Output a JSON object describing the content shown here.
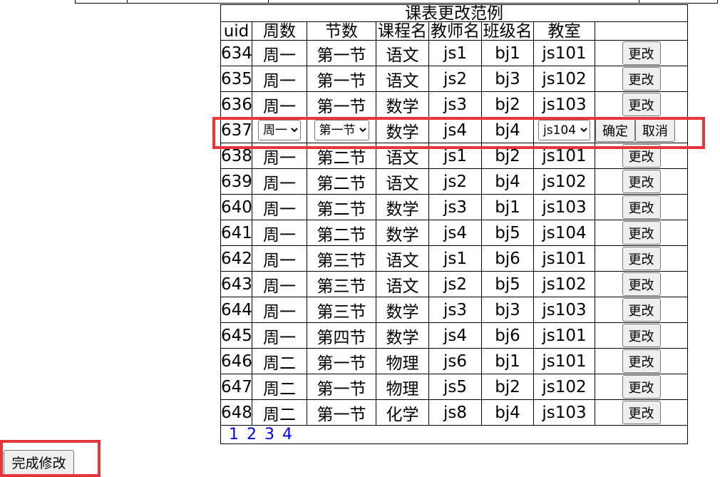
{
  "table": {
    "title": "课表更改范例",
    "headers": [
      "uid",
      "周数",
      "节数",
      "课程名",
      "教师名",
      "班级名",
      "教室",
      ""
    ],
    "rows": [
      {
        "cells": [
          "634",
          "周一",
          "第一节",
          "语文",
          "js1",
          "bj1",
          "js101"
        ],
        "actions": [
          "更改"
        ]
      },
      {
        "cells": [
          "635",
          "周一",
          "第一节",
          "语文",
          "js2",
          "bj3",
          "js102"
        ],
        "actions": [
          "更改"
        ]
      },
      {
        "cells": [
          "636",
          "周一",
          "第一节",
          "数学",
          "js3",
          "bj2",
          "js103"
        ],
        "actions": [
          "更改"
        ]
      },
      {
        "cells": [
          "637",
          "周一",
          "第一节",
          "数学",
          "js4",
          "bj4",
          "js104"
        ],
        "actions": [
          "确定",
          "取消"
        ]
      },
      {
        "cells": [
          "638",
          "周一",
          "第二节",
          "语文",
          "js1",
          "bj2",
          "js101"
        ],
        "actions": [
          "更改"
        ]
      },
      {
        "cells": [
          "639",
          "周一",
          "第二节",
          "语文",
          "js2",
          "bj4",
          "js102"
        ],
        "actions": [
          "更改"
        ]
      },
      {
        "cells": [
          "640",
          "周一",
          "第二节",
          "数学",
          "js3",
          "bj1",
          "js103"
        ],
        "actions": [
          "更改"
        ]
      },
      {
        "cells": [
          "641",
          "周一",
          "第二节",
          "数学",
          "js4",
          "bj5",
          "js104"
        ],
        "actions": [
          "更改"
        ]
      },
      {
        "cells": [
          "642",
          "周一",
          "第三节",
          "语文",
          "js1",
          "bj6",
          "js101"
        ],
        "actions": [
          "更改"
        ]
      },
      {
        "cells": [
          "643",
          "周一",
          "第三节",
          "语文",
          "js2",
          "bj5",
          "js102"
        ],
        "actions": [
          "更改"
        ]
      },
      {
        "cells": [
          "644",
          "周一",
          "第三节",
          "数学",
          "js3",
          "bj3",
          "js103"
        ],
        "actions": [
          "更改"
        ]
      },
      {
        "cells": [
          "645",
          "周一",
          "第四节",
          "数学",
          "js4",
          "bj6",
          "js101"
        ],
        "actions": [
          "更改"
        ]
      },
      {
        "cells": [
          "646",
          "周二",
          "第一节",
          "物理",
          "js6",
          "bj1",
          "js101"
        ],
        "actions": [
          "更改"
        ]
      },
      {
        "cells": [
          "647",
          "周二",
          "第一节",
          "物理",
          "js5",
          "bj2",
          "js102"
        ],
        "actions": [
          "更改"
        ]
      },
      {
        "cells": [
          "648",
          "周二",
          "第一节",
          "化学",
          "js8",
          "bj4",
          "js103"
        ],
        "actions": [
          "更改"
        ]
      }
    ],
    "pages": [
      "1",
      "2",
      "3",
      "4"
    ]
  },
  "finish_button": "完成修改"
}
